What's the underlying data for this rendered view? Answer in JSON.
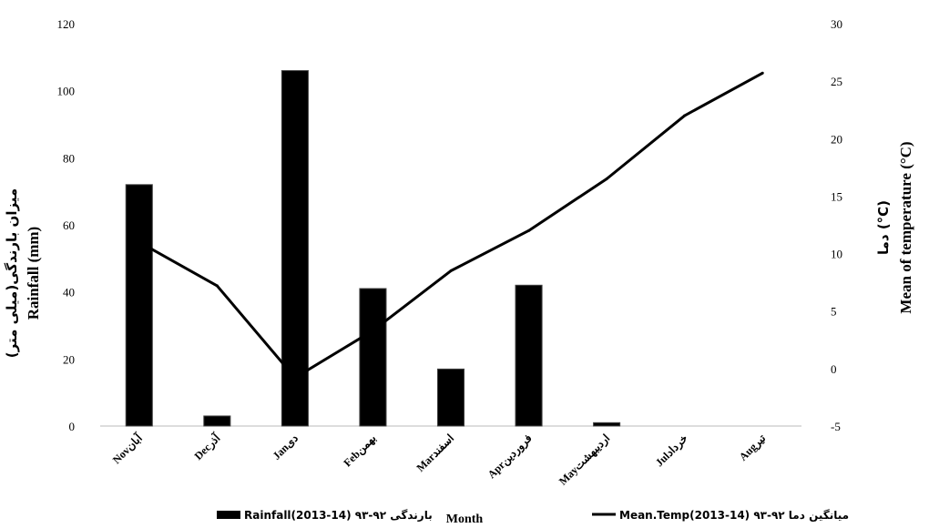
{
  "chart_data": {
    "type": "bar+line",
    "categories": [
      "Novآبان",
      "Decآذر",
      "Janدی",
      "Febبهمن",
      "Marاسفند",
      "Aprفروردین",
      "Mayاردیبهشت",
      "Julخرداد",
      "Augتیر"
    ],
    "series": [
      {
        "name": "Rainfall(2013-14) بارندگی ۹۲-۹۳",
        "axis": "left",
        "kind": "bar",
        "color": "#000000",
        "values": [
          72,
          3,
          106,
          41,
          17,
          42,
          1,
          0,
          0
        ]
      },
      {
        "name": "Mean.Temp(2013-14) میانگین دما ۹۲-۹۳",
        "axis": "right",
        "kind": "line",
        "color": "#000000",
        "values": [
          11,
          7.2,
          -0.8,
          3.3,
          8.5,
          12,
          16.5,
          22,
          25.7
        ]
      }
    ],
    "y_left": {
      "label_en": "Rainfall (mm)",
      "label_fa": "میزان بارندگی(میلی متر)",
      "ylim": [
        0,
        120
      ],
      "ticks": [
        "0",
        "20",
        "40",
        "60",
        "80",
        "100",
        "120"
      ]
    },
    "y_right": {
      "label_en": "Mean of temperature (°C)",
      "label_fa": "دما (°C)",
      "ylim": [
        -5,
        30
      ],
      "ticks": [
        "-5",
        "0",
        "5",
        "10",
        "15",
        "20",
        "25",
        "30"
      ]
    },
    "xlabel": "Month",
    "grid": false,
    "legend_position": "bottom"
  }
}
